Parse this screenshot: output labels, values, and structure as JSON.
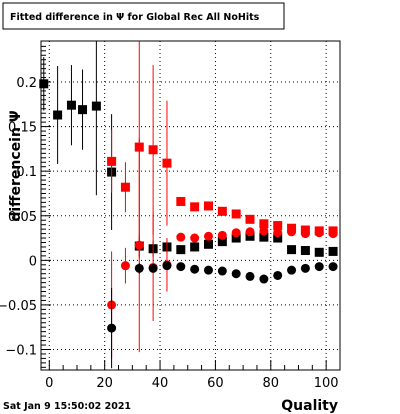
{
  "chart_data": {
    "type": "scatter",
    "title": "Fitted difference in  Ψ  for Global Rec All NoHits",
    "xlabel": "Quality",
    "ylabel": "differencein  Ψ",
    "timestamp": "Sat Jan  9 15:50:02 2021",
    "xlim": [
      -3,
      105
    ],
    "ylim": [
      -0.123,
      0.246
    ],
    "x_ticks": [
      0,
      20,
      40,
      60,
      80,
      100
    ],
    "x_tick_labels": [
      "0",
      "20",
      "40",
      "60",
      "80",
      "100"
    ],
    "y_ticks": [
      -0.1,
      -0.05,
      0,
      0.05,
      0.1,
      0.15,
      0.2
    ],
    "y_tick_labels": [
      "−0.1",
      "−0.05",
      "0",
      "0.05",
      "0.1",
      "0.15",
      "0.2"
    ],
    "grid": true,
    "series": [
      {
        "color": "#000000",
        "marker": "square",
        "points": [
          {
            "x": -2,
            "y": 0.198,
            "err": 0.03
          },
          {
            "x": 3,
            "y": 0.163,
            "err": 0.055
          },
          {
            "x": 8,
            "y": 0.174,
            "err": 0.045
          },
          {
            "x": 12,
            "y": 0.169,
            "err": 0.045
          },
          {
            "x": 17,
            "y": 0.173,
            "err": 0.1
          },
          {
            "x": 22.5,
            "y": 0.099,
            "err": 0.065
          },
          {
            "x": 32.5,
            "y": 0.016,
            "err": 0.012
          },
          {
            "x": 37.5,
            "y": 0.013,
            "err": 0.009
          },
          {
            "x": 42.5,
            "y": 0.015,
            "err": 0.008
          },
          {
            "x": 47.5,
            "y": 0.012,
            "err": 0.004
          },
          {
            "x": 52.5,
            "y": 0.015,
            "err": 0.004
          },
          {
            "x": 57.5,
            "y": 0.018,
            "err": 0.004
          },
          {
            "x": 62.5,
            "y": 0.021,
            "err": 0.004
          },
          {
            "x": 67.5,
            "y": 0.025,
            "err": 0.004
          },
          {
            "x": 72.5,
            "y": 0.027,
            "err": 0.004
          },
          {
            "x": 77.5,
            "y": 0.026,
            "err": 0.004
          },
          {
            "x": 82.5,
            "y": 0.025,
            "err": 0.004
          },
          {
            "x": 87.5,
            "y": 0.012,
            "err": 0.004
          },
          {
            "x": 92.5,
            "y": 0.011,
            "err": 0.004
          },
          {
            "x": 97.5,
            "y": 0.009,
            "err": 0.004
          },
          {
            "x": 102.5,
            "y": 0.01,
            "err": 0.004
          }
        ]
      },
      {
        "color": "#ff0000",
        "marker": "square",
        "points": [
          {
            "x": 22.5,
            "y": 0.111,
            "err": 0.035
          },
          {
            "x": 27.5,
            "y": 0.082,
            "err": 0.028
          },
          {
            "x": 32.5,
            "y": 0.127,
            "err": 0.125
          },
          {
            "x": 37.5,
            "y": 0.124,
            "err": 0.095
          },
          {
            "x": 42.5,
            "y": 0.109,
            "err": 0.07
          },
          {
            "x": 47.5,
            "y": 0.066,
            "err": 0.004
          },
          {
            "x": 52.5,
            "y": 0.06,
            "err": 0.004
          },
          {
            "x": 57.5,
            "y": 0.061,
            "err": 0.004
          },
          {
            "x": 62.5,
            "y": 0.055,
            "err": 0.004
          },
          {
            "x": 67.5,
            "y": 0.052,
            "err": 0.004
          },
          {
            "x": 72.5,
            "y": 0.046,
            "err": 0.004
          },
          {
            "x": 77.5,
            "y": 0.041,
            "err": 0.004
          },
          {
            "x": 82.5,
            "y": 0.039,
            "err": 0.004
          },
          {
            "x": 87.5,
            "y": 0.036,
            "err": 0.004
          },
          {
            "x": 92.5,
            "y": 0.034,
            "err": 0.004
          },
          {
            "x": 97.5,
            "y": 0.033,
            "err": 0.004
          },
          {
            "x": 102.5,
            "y": 0.033,
            "err": 0.004
          }
        ]
      },
      {
        "color": "#ff0000",
        "marker": "circle",
        "points": [
          {
            "x": 22.5,
            "y": -0.05,
            "err": 0.06
          },
          {
            "x": 27.5,
            "y": -0.006,
            "err": 0.02
          },
          {
            "x": 32.5,
            "y": 0.017,
            "err": 0.12
          },
          {
            "x": 37.5,
            "y": -0.008,
            "err": 0.06
          },
          {
            "x": 42.5,
            "y": -0.005,
            "err": 0.03
          },
          {
            "x": 47.5,
            "y": 0.026,
            "err": 0.004
          },
          {
            "x": 52.5,
            "y": 0.025,
            "err": 0.004
          },
          {
            "x": 57.5,
            "y": 0.027,
            "err": 0.004
          },
          {
            "x": 62.5,
            "y": 0.028,
            "err": 0.004
          },
          {
            "x": 67.5,
            "y": 0.031,
            "err": 0.004
          },
          {
            "x": 72.5,
            "y": 0.032,
            "err": 0.004
          },
          {
            "x": 77.5,
            "y": 0.033,
            "err": 0.004
          },
          {
            "x": 82.5,
            "y": 0.031,
            "err": 0.004
          },
          {
            "x": 87.5,
            "y": 0.032,
            "err": 0.004
          },
          {
            "x": 92.5,
            "y": 0.03,
            "err": 0.004
          },
          {
            "x": 97.5,
            "y": 0.031,
            "err": 0.004
          },
          {
            "x": 102.5,
            "y": 0.03,
            "err": 0.004
          }
        ]
      },
      {
        "color": "#000000",
        "marker": "circle",
        "points": [
          {
            "x": 22.5,
            "y": -0.076,
            "err": 0.045
          },
          {
            "x": 32.5,
            "y": -0.009,
            "err": 0.006
          },
          {
            "x": 37.5,
            "y": -0.009,
            "err": 0.005
          },
          {
            "x": 42.5,
            "y": -0.006,
            "err": 0.004
          },
          {
            "x": 47.5,
            "y": -0.007,
            "err": 0.004
          },
          {
            "x": 52.5,
            "y": -0.01,
            "err": 0.004
          },
          {
            "x": 57.5,
            "y": -0.011,
            "err": 0.004
          },
          {
            "x": 62.5,
            "y": -0.012,
            "err": 0.004
          },
          {
            "x": 67.5,
            "y": -0.015,
            "err": 0.004
          },
          {
            "x": 72.5,
            "y": -0.018,
            "err": 0.004
          },
          {
            "x": 77.5,
            "y": -0.021,
            "err": 0.004
          },
          {
            "x": 82.5,
            "y": -0.017,
            "err": 0.004
          },
          {
            "x": 87.5,
            "y": -0.011,
            "err": 0.004
          },
          {
            "x": 92.5,
            "y": -0.009,
            "err": 0.004
          },
          {
            "x": 97.5,
            "y": -0.007,
            "err": 0.004
          },
          {
            "x": 102.5,
            "y": -0.007,
            "err": 0.004
          }
        ]
      }
    ]
  }
}
